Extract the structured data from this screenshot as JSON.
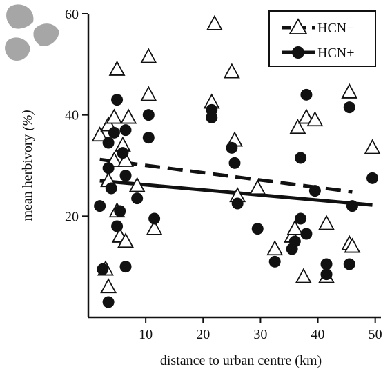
{
  "chart_data": {
    "type": "scatter",
    "title": "",
    "xlabel": "distance to urban centre (km)",
    "ylabel_main": "mean herbivory ",
    "ylabel_unit": "(%)",
    "xlim": [
      0,
      51
    ],
    "ylim": [
      0,
      60
    ],
    "x_ticks": [
      10,
      20,
      30,
      40,
      50
    ],
    "y_ticks": [
      20,
      40,
      60
    ],
    "grid": false,
    "legend_position": "top-right",
    "series": [
      {
        "name": "HCN−",
        "marker": "open-triangle",
        "line_style": "dashed",
        "trend": {
          "x": [
            2,
            46
          ],
          "y": [
            31.2,
            24.8
          ]
        },
        "points": [
          {
            "x": 2,
            "y": 36
          },
          {
            "x": 3.5,
            "y": 38
          },
          {
            "x": 3.5,
            "y": 27
          },
          {
            "x": 3,
            "y": 9.5
          },
          {
            "x": 3.5,
            "y": 6
          },
          {
            "x": 4.5,
            "y": 39.5
          },
          {
            "x": 4.5,
            "y": 31
          },
          {
            "x": 5,
            "y": 49
          },
          {
            "x": 5,
            "y": 21
          },
          {
            "x": 5.5,
            "y": 16
          },
          {
            "x": 6,
            "y": 34
          },
          {
            "x": 6.5,
            "y": 15
          },
          {
            "x": 6.5,
            "y": 31
          },
          {
            "x": 7,
            "y": 39.5
          },
          {
            "x": 8.5,
            "y": 26
          },
          {
            "x": 10.5,
            "y": 51.5
          },
          {
            "x": 10.5,
            "y": 44
          },
          {
            "x": 11.5,
            "y": 17.5
          },
          {
            "x": 21.5,
            "y": 42.5
          },
          {
            "x": 22,
            "y": 58
          },
          {
            "x": 25,
            "y": 48.5
          },
          {
            "x": 25.5,
            "y": 35
          },
          {
            "x": 26,
            "y": 24
          },
          {
            "x": 29.5,
            "y": 25.5
          },
          {
            "x": 32.5,
            "y": 13.5
          },
          {
            "x": 35.5,
            "y": 16
          },
          {
            "x": 36,
            "y": 17.5
          },
          {
            "x": 36.5,
            "y": 37.5
          },
          {
            "x": 37.5,
            "y": 8
          },
          {
            "x": 38,
            "y": 39.5
          },
          {
            "x": 39.5,
            "y": 39
          },
          {
            "x": 41.5,
            "y": 8
          },
          {
            "x": 41.5,
            "y": 18.5
          },
          {
            "x": 45.5,
            "y": 44.5
          },
          {
            "x": 45.5,
            "y": 14.5
          },
          {
            "x": 46,
            "y": 14
          },
          {
            "x": 49.5,
            "y": 33.5
          }
        ]
      },
      {
        "name": "HCN+",
        "marker": "filled-circle",
        "line_style": "solid",
        "trend": {
          "x": [
            2,
            49.5
          ],
          "y": [
            27.0,
            22.2
          ]
        },
        "points": [
          {
            "x": 2,
            "y": 22
          },
          {
            "x": 2.5,
            "y": 9.5
          },
          {
            "x": 3.5,
            "y": 3
          },
          {
            "x": 3.5,
            "y": 29.5
          },
          {
            "x": 3.5,
            "y": 34.5
          },
          {
            "x": 4,
            "y": 25.5
          },
          {
            "x": 4.5,
            "y": 36.5
          },
          {
            "x": 5,
            "y": 43
          },
          {
            "x": 5,
            "y": 18
          },
          {
            "x": 5.5,
            "y": 21
          },
          {
            "x": 6,
            "y": 32.5
          },
          {
            "x": 6.5,
            "y": 28
          },
          {
            "x": 6.5,
            "y": 37
          },
          {
            "x": 6.5,
            "y": 10
          },
          {
            "x": 8.5,
            "y": 23.5
          },
          {
            "x": 10.5,
            "y": 40
          },
          {
            "x": 10.5,
            "y": 35.5
          },
          {
            "x": 11.5,
            "y": 19.5
          },
          {
            "x": 21.5,
            "y": 39.5
          },
          {
            "x": 21.5,
            "y": 41
          },
          {
            "x": 25,
            "y": 33.5
          },
          {
            "x": 25.5,
            "y": 30.5
          },
          {
            "x": 26,
            "y": 22.5
          },
          {
            "x": 29.5,
            "y": 17.5
          },
          {
            "x": 32.5,
            "y": 11
          },
          {
            "x": 35.5,
            "y": 13.5
          },
          {
            "x": 36,
            "y": 15
          },
          {
            "x": 37,
            "y": 31.5
          },
          {
            "x": 37,
            "y": 19.5
          },
          {
            "x": 38,
            "y": 44
          },
          {
            "x": 38,
            "y": 16.5
          },
          {
            "x": 39.5,
            "y": 25
          },
          {
            "x": 41.5,
            "y": 8.5
          },
          {
            "x": 41.5,
            "y": 10.5
          },
          {
            "x": 45.5,
            "y": 41.5
          },
          {
            "x": 45.5,
            "y": 10.5
          },
          {
            "x": 46,
            "y": 22
          },
          {
            "x": 49.5,
            "y": 27.5
          }
        ]
      }
    ]
  },
  "colors": {
    "ink": "#111111",
    "marker_fill_open": "#ffffff",
    "leaf_icon": "#a6a6a6"
  },
  "icons": {
    "leaf": "clover-leaf-icon"
  }
}
